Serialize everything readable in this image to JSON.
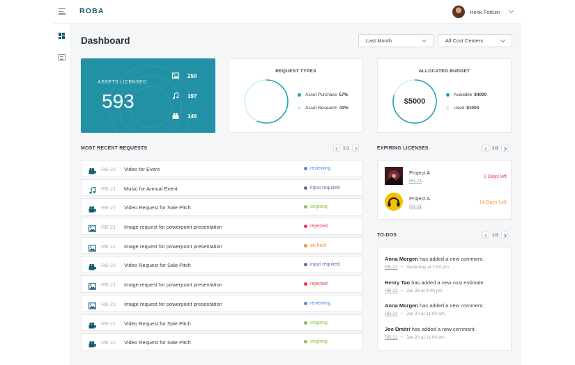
{
  "app": {
    "logo": "ROBA"
  },
  "user": {
    "name": "Henk Fortuin"
  },
  "page": {
    "title": "Dashboard"
  },
  "filters": {
    "period": "Last Month",
    "cost_center": "All Cost Centers"
  },
  "assets": {
    "label": "ASSETS LICENSED",
    "total": "593",
    "stats": [
      {
        "icon": "image-icon",
        "value": "250"
      },
      {
        "icon": "music-note-icon",
        "value": "197"
      },
      {
        "icon": "video-camera-icon",
        "value": "146"
      }
    ]
  },
  "request_types": {
    "title": "REQUEST TYPES",
    "items": [
      {
        "label": "Asset Purchase",
        "value": "57%",
        "fraction": 0.57,
        "color": "#1aa3b5"
      },
      {
        "label": "Asset Research",
        "value": "43%",
        "fraction": 0.43,
        "color": "#cdeef2"
      }
    ]
  },
  "budget": {
    "title": "ALLOCATED BUDGET",
    "center": "$5000",
    "items": [
      {
        "label": "Available",
        "value": "$4000",
        "fraction": 0.8,
        "color": "#1aa3b5"
      },
      {
        "label": "Used",
        "value": "$1000",
        "fraction": 0.2,
        "color": "#cdeef2"
      }
    ]
  },
  "recent": {
    "title": "MOST RECENT REQUESTS",
    "pager": "1/1",
    "rows": [
      {
        "icon": "video-camera-icon",
        "id": "RB-21",
        "title": "Video for Event",
        "status": "reviewing",
        "color": "#4a90e2"
      },
      {
        "icon": "music-note-icon",
        "id": "RB-21",
        "title": "Music for Annual Event",
        "status": "input required",
        "color": "#7b5ea7"
      },
      {
        "icon": "video-camera-icon",
        "id": "RB-21",
        "title": "Video Request for Sale Pitch",
        "status": "ongoing",
        "color": "#8bc34a"
      },
      {
        "icon": "image-icon",
        "id": "RB-21",
        "title": "Image request for powerpoint presentation",
        "status": "rejected",
        "color": "#e53950"
      },
      {
        "icon": "image-icon",
        "id": "RB-21",
        "title": "Image request for powerpoint presentation",
        "status": "on hold",
        "color": "#f0923a"
      },
      {
        "icon": "video-camera-icon",
        "id": "RB-21",
        "title": "Video Request for Sale Pitch",
        "status": "input required",
        "color": "#7b5ea7"
      },
      {
        "icon": "image-icon",
        "id": "RB-21",
        "title": "Image request for powerpoint presentation",
        "status": "rejected",
        "color": "#e53950"
      },
      {
        "icon": "image-icon",
        "id": "RB-21",
        "title": "Image request for powerpoint presentation",
        "status": "reviewing",
        "color": "#4a90e2"
      },
      {
        "icon": "video-camera-icon",
        "id": "RB-21",
        "title": "Video Request for Sale Pitch",
        "status": "ongoing",
        "color": "#8bc34a"
      },
      {
        "icon": "video-camera-icon",
        "id": "RB-21",
        "title": "Video Request for Sale Pitch",
        "status": "ongoing",
        "color": "#8bc34a"
      }
    ]
  },
  "expiring": {
    "title": "EXPIRING LICENSES",
    "pager": "1/3",
    "items": [
      {
        "name": "Project A",
        "id": "RB-21",
        "left": "2 Days left",
        "color": "#e53950"
      },
      {
        "name": "Project A",
        "id": "RB-21",
        "left": "14 Days Left",
        "color": "#f0923a"
      }
    ]
  },
  "todos": {
    "title": "TO-DOS",
    "pager": "1/3",
    "items": [
      {
        "who": "Anna Morgen",
        "text": "has added a new comment.",
        "id": "RB-21",
        "time": "Yesterday at 2:00 pm"
      },
      {
        "who": "Henry Tao",
        "text": "has added a new cost estimate.",
        "id": "RB-21",
        "time": "Jan 26 at 3:00 pm"
      },
      {
        "who": "Anna Morgen",
        "text": "has added a new comment.",
        "id": "RB-21",
        "time": "Jan 20 at 11:00 am"
      },
      {
        "who": "Joe Dmitri",
        "text": "has added a new comment.",
        "id": "RB-21",
        "time": "Jan 20 at 11:00 am"
      }
    ]
  }
}
